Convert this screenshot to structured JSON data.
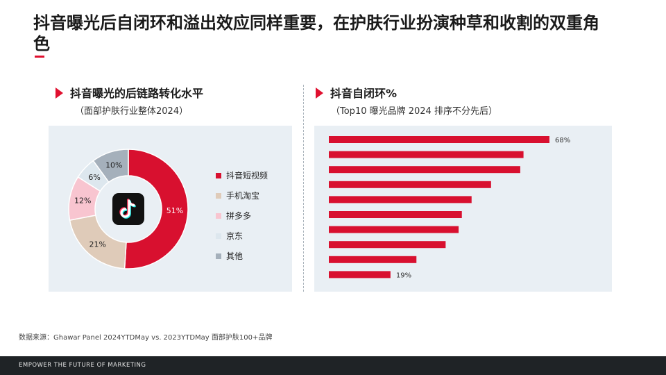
{
  "title": "抖音曝光后自闭环和溢出效应同样重要，在护肤行业扮演种草和收割的双重角色",
  "left_section": {
    "heading": "抖音曝光的后链路转化水平",
    "subheading": "（面部护肤行业整体2024）"
  },
  "right_section": {
    "heading": "抖音自闭环%",
    "subheading": "（Top10 曝光品牌 2024 排序不分先后）"
  },
  "icons": {
    "center_logo": "tiktok-logo-icon",
    "heading_marker": "triangle-marker-icon"
  },
  "colors": {
    "accent": "#e0102f",
    "panel_bg": "#e9eff4",
    "footer_bg": "#1f2326"
  },
  "chart_data": [
    {
      "type": "pie",
      "donut": true,
      "title": "",
      "legend_position": "right",
      "slices": [
        {
          "name": "抖音短视频",
          "value": 51,
          "label": "51%",
          "color": "#d8102f"
        },
        {
          "name": "手机淘宝",
          "value": 21,
          "label": "21%",
          "color": "#dfcbb9"
        },
        {
          "name": "拼多多",
          "value": 12,
          "label": "12%",
          "color": "#f8c5d0"
        },
        {
          "name": "京东",
          "value": 6,
          "label": "6%",
          "color": "#dde7ee"
        },
        {
          "name": "其他",
          "value": 10,
          "label": "10%",
          "color": "#a5b0bb"
        }
      ]
    },
    {
      "type": "bar",
      "orientation": "horizontal",
      "title": "",
      "categories": [
        "",
        "",
        "",
        "",
        "",
        "",
        "",
        "",
        "",
        ""
      ],
      "values": [
        68,
        60,
        59,
        50,
        44,
        41,
        40,
        36,
        27,
        19
      ],
      "data_labels": [
        "68%",
        "",
        "",
        "",
        "",
        "",
        "",
        "",
        "",
        "19%"
      ],
      "xlim": [
        0,
        100
      ],
      "color": "#d8102f"
    }
  ],
  "source": "数据来源：Ghawar Panel 2024YTDMay vs. 2023YTDMay 面部护肤100+品牌",
  "footer": "EMPOWER THE FUTURE OF MARKETING"
}
